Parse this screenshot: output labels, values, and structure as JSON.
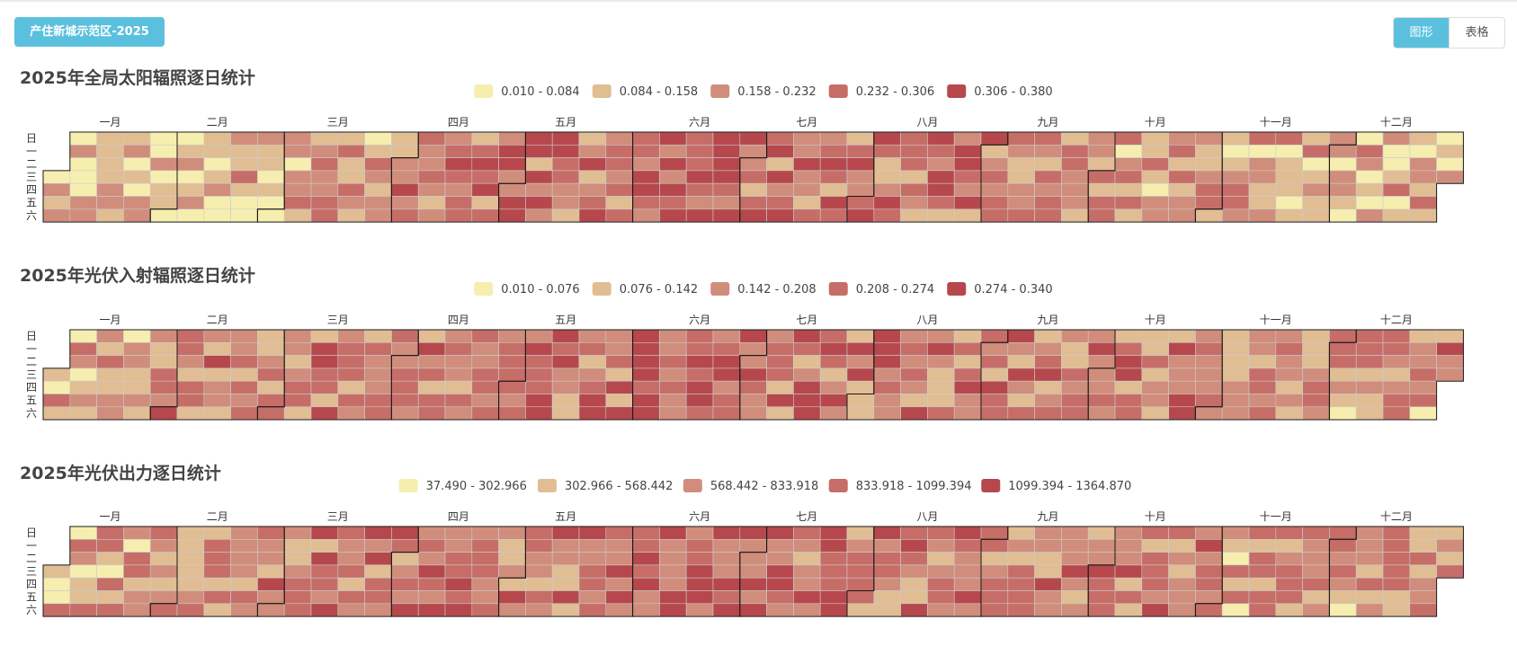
{
  "header": {
    "region_label": "产住新城示范区-2025",
    "view_toggle": [
      {
        "label": "图形",
        "active": true
      },
      {
        "label": "表格",
        "active": false
      }
    ]
  },
  "chart_data": [
    {
      "type": "heatmap",
      "subtype": "calendar",
      "title": "2025年全局太阳辐照逐日统计",
      "year": 2025,
      "legend": [
        "0.010 - 0.084",
        "0.084 - 0.158",
        "0.158 - 0.232",
        "0.232 - 0.306",
        "0.306 - 0.380"
      ],
      "value_range": [
        0.01,
        0.38
      ],
      "months": [
        "一月",
        "二月",
        "三月",
        "四月",
        "五月",
        "六月",
        "七月",
        "八月",
        "九月",
        "十月",
        "十一月",
        "十二月"
      ],
      "weekdays": [
        "日",
        "一",
        "二",
        "三",
        "四",
        "五",
        "六"
      ],
      "colors": [
        "#f6eeaf",
        "#e1bd93",
        "#d18d7b",
        "#c76d68",
        "#b6484d"
      ],
      "monthly_level": [
        0.8,
        1.0,
        1.6,
        2.5,
        2.7,
        3.4,
        2.8,
        2.5,
        2.2,
        1.9,
        1.5,
        1.2
      ],
      "seed": 7
    },
    {
      "type": "heatmap",
      "subtype": "calendar",
      "title": "2025年光伏入射辐照逐日统计",
      "year": 2025,
      "legend": [
        "0.010 - 0.076",
        "0.076 - 0.142",
        "0.142 - 0.208",
        "0.208 - 0.274",
        "0.274 - 0.340"
      ],
      "value_range": [
        0.01,
        0.34
      ],
      "months": [
        "一月",
        "二月",
        "三月",
        "四月",
        "五月",
        "六月",
        "七月",
        "八月",
        "九月",
        "十月",
        "十一月",
        "十二月"
      ],
      "weekdays": [
        "日",
        "一",
        "二",
        "三",
        "四",
        "五",
        "六"
      ],
      "colors": [
        "#f6eeaf",
        "#e1bd93",
        "#d18d7b",
        "#c76d68",
        "#b6484d"
      ],
      "monthly_level": [
        1.7,
        2.0,
        2.4,
        2.7,
        2.7,
        3.2,
        2.6,
        2.5,
        2.5,
        2.3,
        2.0,
        2.0
      ],
      "seed": 19
    },
    {
      "type": "heatmap",
      "subtype": "calendar",
      "title": "2025年光伏出力逐日统计",
      "year": 2025,
      "legend": [
        "37.490 - 302.966",
        "302.966 - 568.442",
        "568.442 - 833.918",
        "833.918 - 1099.394",
        "1099.394 - 1364.870"
      ],
      "value_range": [
        37.49,
        1364.87
      ],
      "months": [
        "一月",
        "二月",
        "三月",
        "四月",
        "五月",
        "六月",
        "七月",
        "八月",
        "九月",
        "十月",
        "十一月",
        "十二月"
      ],
      "weekdays": [
        "日",
        "一",
        "二",
        "三",
        "四",
        "五",
        "六"
      ],
      "colors": [
        "#f6eeaf",
        "#e1bd93",
        "#d18d7b",
        "#c76d68",
        "#b6484d"
      ],
      "monthly_level": [
        1.6,
        2.0,
        2.4,
        2.7,
        2.7,
        3.2,
        2.6,
        2.5,
        2.5,
        2.3,
        2.0,
        2.0
      ],
      "seed": 31
    }
  ]
}
